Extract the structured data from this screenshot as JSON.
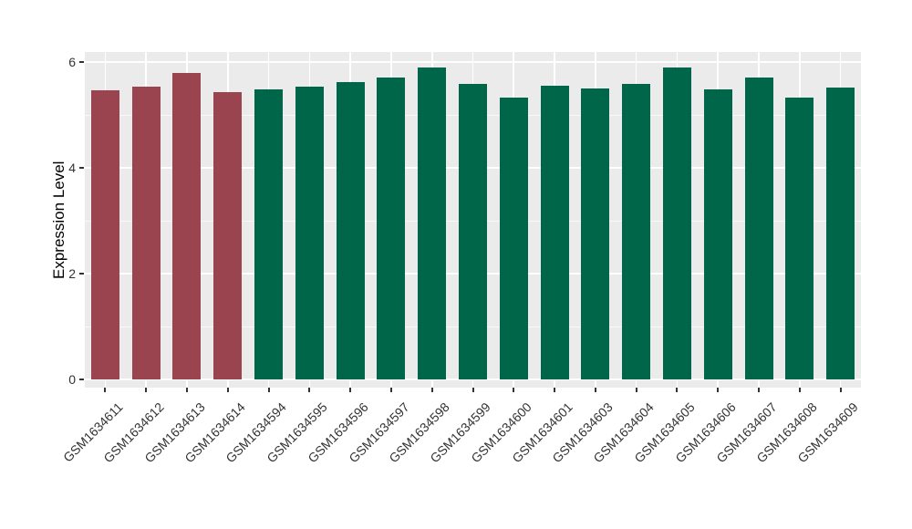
{
  "chart_data": {
    "type": "bar",
    "title": "",
    "xlabel": "",
    "ylabel": "Expression Level",
    "ylim": [
      0,
      6.35
    ],
    "yticks_major": [
      0,
      2,
      4,
      6
    ],
    "ytick_labels": [
      "0",
      "2",
      "4",
      "6"
    ],
    "yticks_minor": [
      1,
      3,
      5
    ],
    "grid": "on",
    "legend": "none",
    "categories": [
      "GSM1634611",
      "GSM1634612",
      "GSM1634613",
      "GSM1634614",
      "GSM1634594",
      "GSM1634595",
      "GSM1634596",
      "GSM1634597",
      "GSM1634598",
      "GSM1634599",
      "GSM1634600",
      "GSM1634601",
      "GSM1634603",
      "GSM1634604",
      "GSM1634605",
      "GSM1634606",
      "GSM1634607",
      "GSM1634608",
      "GSM1634609"
    ],
    "values": [
      5.47,
      5.53,
      5.79,
      5.43,
      5.48,
      5.54,
      5.62,
      5.7,
      5.89,
      5.58,
      5.32,
      5.56,
      5.5,
      5.58,
      5.9,
      5.48,
      5.71,
      5.33,
      5.51
    ],
    "bar_colors": [
      "#9A4450",
      "#9A4450",
      "#9A4450",
      "#9A4450",
      "#006649",
      "#006649",
      "#006649",
      "#006649",
      "#006649",
      "#006649",
      "#006649",
      "#006649",
      "#006649",
      "#006649",
      "#006649",
      "#006649",
      "#006649",
      "#006649",
      "#006649"
    ]
  },
  "colors": {
    "page_bg": "#FFFFFF",
    "panel_bg": "#EBEBEB",
    "grid_major": "#FFFFFF",
    "grid_minor": "#FFFFFF",
    "group_red": "#9A4450",
    "group_green": "#006649",
    "axis_text": "#333333",
    "axis_title": "#000000"
  }
}
